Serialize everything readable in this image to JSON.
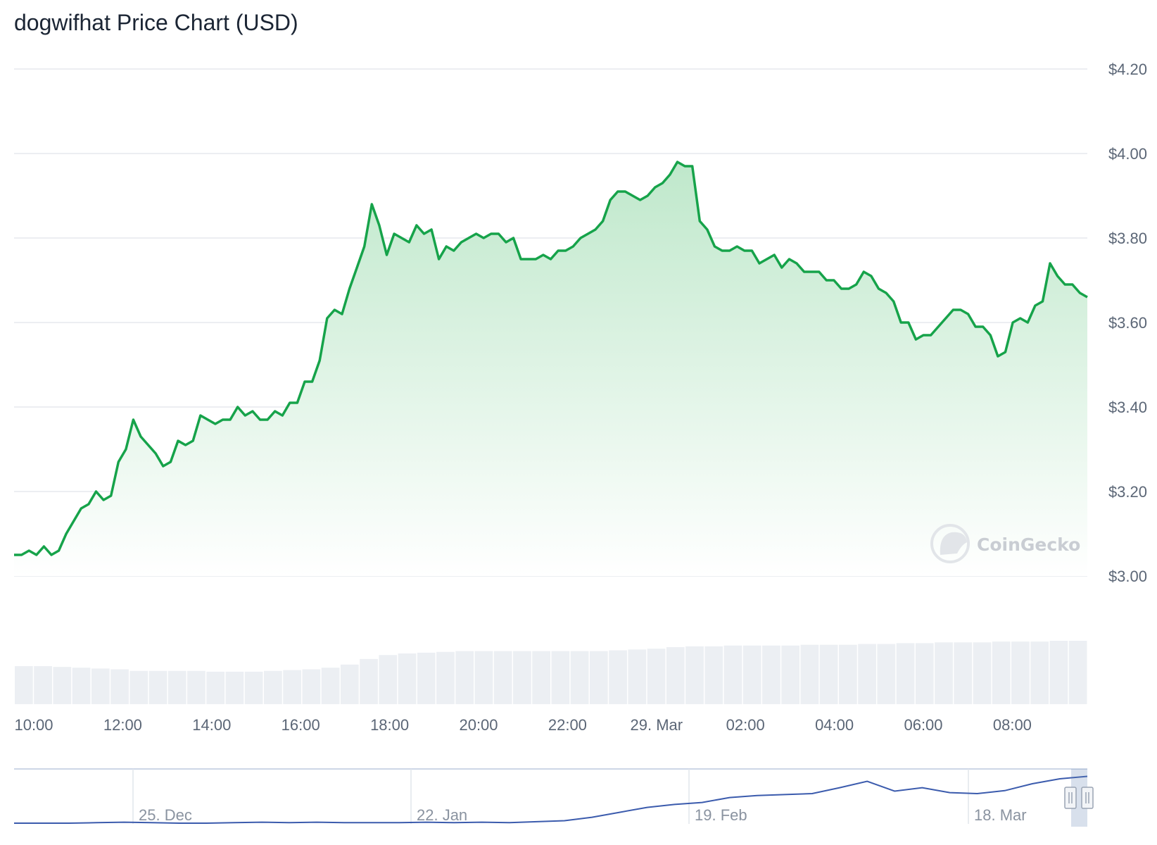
{
  "title": "dogwifhat Price Chart (USD)",
  "watermark": "CoinGecko",
  "colors": {
    "line": "#16a34a",
    "area_top": "#bfe8cb",
    "volume": "#eceff3",
    "navigator": "#3b5bad"
  },
  "chart_data": {
    "type": "line",
    "series": [
      {
        "values": [
          3.05,
          3.05,
          3.06,
          3.05,
          3.07,
          3.05,
          3.06,
          3.1,
          3.13,
          3.16,
          3.17,
          3.2,
          3.18,
          3.19,
          3.27,
          3.3,
          3.37,
          3.33,
          3.31,
          3.29,
          3.26,
          3.27,
          3.32,
          3.31,
          3.32,
          3.38,
          3.37,
          3.36,
          3.37,
          3.37,
          3.4,
          3.38,
          3.39,
          3.37,
          3.37,
          3.39,
          3.38,
          3.41,
          3.41,
          3.46,
          3.46,
          3.51,
          3.61,
          3.63,
          3.62,
          3.68,
          3.73,
          3.78,
          3.88,
          3.83,
          3.76,
          3.81,
          3.8,
          3.79,
          3.83,
          3.81,
          3.82,
          3.75,
          3.78,
          3.77,
          3.79,
          3.8,
          3.81,
          3.8,
          3.81,
          3.81,
          3.79,
          3.8,
          3.75,
          3.75,
          3.75,
          3.76,
          3.75,
          3.77,
          3.77,
          3.78,
          3.8,
          3.81,
          3.82,
          3.84,
          3.89,
          3.91,
          3.91,
          3.9,
          3.89,
          3.9,
          3.92,
          3.93,
          3.95,
          3.98,
          3.97,
          3.97,
          3.84,
          3.82,
          3.78,
          3.77,
          3.77,
          3.78,
          3.77,
          3.77,
          3.74,
          3.75,
          3.76,
          3.73,
          3.75,
          3.74,
          3.72,
          3.72,
          3.72,
          3.7,
          3.7,
          3.68,
          3.68,
          3.69,
          3.72,
          3.71,
          3.68,
          3.67,
          3.65,
          3.6,
          3.6,
          3.56,
          3.57,
          3.57,
          3.59,
          3.61,
          3.63,
          3.63,
          3.62,
          3.59,
          3.59,
          3.57,
          3.52,
          3.53,
          3.6,
          3.61,
          3.6,
          3.64,
          3.65,
          3.74,
          3.71,
          3.69,
          3.69,
          3.67,
          3.66
        ]
      }
    ],
    "x_ticks": [
      "10:00",
      "12:00",
      "14:00",
      "16:00",
      "18:00",
      "20:00",
      "22:00",
      "29. Mar",
      "02:00",
      "04:00",
      "06:00",
      "08:00"
    ],
    "y_ticks": [
      "$3.00",
      "$3.20",
      "$3.40",
      "$3.60",
      "$3.80",
      "$4.00",
      "$4.20"
    ],
    "ylim": [
      3.0,
      4.2
    ],
    "volume": [
      0.48,
      0.48,
      0.47,
      0.46,
      0.45,
      0.44,
      0.42,
      0.42,
      0.42,
      0.42,
      0.41,
      0.41,
      0.41,
      0.42,
      0.43,
      0.44,
      0.46,
      0.5,
      0.57,
      0.62,
      0.64,
      0.65,
      0.66,
      0.67,
      0.67,
      0.67,
      0.67,
      0.67,
      0.67,
      0.67,
      0.67,
      0.68,
      0.69,
      0.7,
      0.72,
      0.73,
      0.73,
      0.74,
      0.74,
      0.74,
      0.74,
      0.75,
      0.75,
      0.75,
      0.76,
      0.76,
      0.77,
      0.77,
      0.78,
      0.78,
      0.78,
      0.79,
      0.79,
      0.79,
      0.8,
      0.8
    ],
    "navigator": {
      "x_ticks": [
        "25. Dec",
        "22. Jan",
        "19. Feb",
        "18. Mar"
      ],
      "values": [
        0.0,
        0.0,
        0.0,
        0.01,
        0.02,
        0.01,
        0.0,
        0.0,
        0.01,
        0.02,
        0.01,
        0.02,
        0.01,
        0.01,
        0.01,
        0.02,
        0.01,
        0.02,
        0.01,
        0.03,
        0.05,
        0.12,
        0.22,
        0.32,
        0.38,
        0.42,
        0.52,
        0.56,
        0.58,
        0.6,
        0.72,
        0.85,
        0.65,
        0.72,
        0.62,
        0.6,
        0.66,
        0.8,
        0.9,
        0.95
      ]
    }
  }
}
